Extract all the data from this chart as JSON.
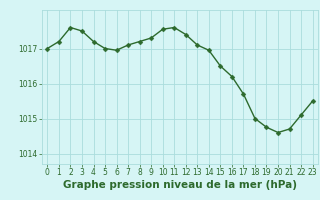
{
  "x": [
    0,
    1,
    2,
    3,
    4,
    5,
    6,
    7,
    8,
    9,
    10,
    11,
    12,
    13,
    14,
    15,
    16,
    17,
    18,
    19,
    20,
    21,
    22,
    23
  ],
  "y": [
    1017.0,
    1017.2,
    1017.6,
    1017.5,
    1017.2,
    1017.0,
    1016.95,
    1017.1,
    1017.2,
    1017.3,
    1017.55,
    1017.6,
    1017.4,
    1017.1,
    1016.95,
    1016.5,
    1016.2,
    1015.7,
    1015.0,
    1014.75,
    1014.6,
    1014.7,
    1015.1,
    1015.5
  ],
  "line_color": "#2d6a2d",
  "marker": "D",
  "marker_size": 2.5,
  "bg_color": "#d6f5f5",
  "grid_color": "#aadddd",
  "xlabel": "Graphe pression niveau de la mer (hPa)",
  "xlabel_fontsize": 7.5,
  "ylim": [
    1013.7,
    1018.1
  ],
  "yticks": [
    1014,
    1015,
    1016,
    1017
  ],
  "xticks": [
    0,
    1,
    2,
    3,
    4,
    5,
    6,
    7,
    8,
    9,
    10,
    11,
    12,
    13,
    14,
    15,
    16,
    17,
    18,
    19,
    20,
    21,
    22,
    23
  ],
  "tick_fontsize": 5.5,
  "line_width": 1.0
}
